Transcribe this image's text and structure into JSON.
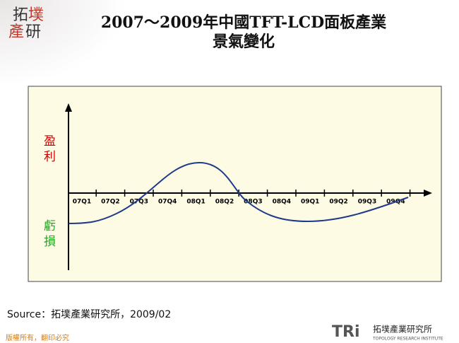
{
  "logo": {
    "chars": [
      "拓",
      "墣",
      "產",
      "研"
    ]
  },
  "title": {
    "line1": "2007～2009年中國TFT-LCD面板產業",
    "line2": "景氣變化"
  },
  "chart": {
    "y_top_label": "盈利",
    "y_bottom_label": "虧損",
    "categories": [
      "07Q1",
      "07Q2",
      "07Q3",
      "07Q4",
      "08Q1",
      "08Q2",
      "08Q3",
      "08Q4",
      "09Q1",
      "09Q2",
      "09Q3",
      "09Q4"
    ]
  },
  "source": "Source：拓墣產業研究所，2009/02",
  "footer": {
    "copyright": "版權所有，翻印必究",
    "brand": "TRi",
    "brand_name": "拓墣產業研究所",
    "brand_english": "TOPOLOGY RESEARCH INSTITUTE"
  }
}
